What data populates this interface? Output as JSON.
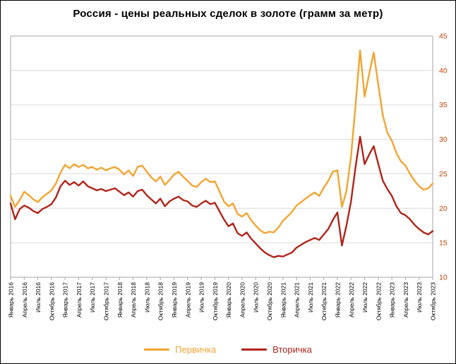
{
  "title": "Россия - цены реальных сделок в золоте (грамм за метр)",
  "chart_data": {
    "type": "line",
    "title": "Россия - цены реальных сделок в золоте (грамм за метр)",
    "xlabel": "",
    "ylabel": "",
    "ylim": [
      10,
      45
    ],
    "y_ticks": [
      10,
      15,
      20,
      25,
      30,
      35,
      40,
      45
    ],
    "y_axis_side": "right",
    "grid": "horizontal",
    "legend_position": "bottom",
    "x_tick_step": 3,
    "x_tick_labels": [
      "Январь 2016",
      "Апрель 2016",
      "Июль 2016",
      "Октябрь 2016",
      "Январь 2017",
      "Апрель 2017",
      "Июль 2017",
      "Октябрь 2017",
      "Январь 2018",
      "Апрель 2018",
      "Июль 2018",
      "Октябрь 2018",
      "Январь 2019",
      "Апрель 2019",
      "Июль 2019",
      "Октябрь 2019",
      "Январь 2020",
      "Апрель 2020",
      "Июль 2020",
      "Октябрь 2020",
      "Январь 2021",
      "Апрель 2021",
      "Июль 2021",
      "Октябрь 2021",
      "Январь 2022",
      "Апрель 2022",
      "Июль 2022",
      "Октябрь 2022",
      "Январь 2023",
      "Апрель 2023",
      "Июль 2023",
      "Октябрь 2023"
    ],
    "x_unit": "month",
    "axis_colors": {
      "y_tick": "#C04000",
      "x_tick": "#000000",
      "grid": "#D9D9D9",
      "frame": "#A6A6A6"
    },
    "series": [
      {
        "name": "Первичка",
        "color": "#F2A432",
        "values": [
          21.8,
          20.2,
          21.2,
          22.4,
          21.9,
          21.3,
          20.9,
          21.6,
          22.1,
          22.6,
          23.6,
          25.2,
          26.3,
          25.8,
          26.4,
          26.0,
          26.3,
          25.8,
          26.0,
          25.6,
          25.9,
          25.5,
          25.8,
          26.0,
          25.6,
          24.9,
          25.5,
          24.7,
          26.0,
          26.2,
          25.3,
          24.5,
          23.9,
          24.6,
          23.4,
          24.1,
          24.9,
          25.3,
          24.6,
          24.0,
          23.3,
          23.1,
          23.8,
          24.3,
          23.8,
          23.9,
          22.5,
          21.0,
          20.3,
          20.7,
          19.2,
          18.8,
          19.3,
          18.3,
          17.5,
          16.8,
          16.4,
          16.6,
          16.5,
          17.2,
          18.2,
          18.8,
          19.5,
          20.4,
          20.9,
          21.4,
          21.9,
          22.3,
          21.8,
          23.0,
          24.0,
          25.3,
          25.5,
          20.2,
          22.5,
          27.5,
          35.0,
          42.9,
          36.2,
          39.5,
          42.6,
          38.0,
          33.5,
          31.0,
          29.8,
          28.0,
          26.8,
          26.2,
          25.0,
          24.0,
          23.2,
          22.7,
          22.9,
          23.6
        ]
      },
      {
        "name": "Вторичка",
        "color": "#B02418",
        "values": [
          20.7,
          18.4,
          19.9,
          20.4,
          20.1,
          19.6,
          19.3,
          19.9,
          20.2,
          20.6,
          21.6,
          23.2,
          24.0,
          23.4,
          23.8,
          23.3,
          23.9,
          23.2,
          22.9,
          22.6,
          22.8,
          22.5,
          22.7,
          22.9,
          22.4,
          21.9,
          22.3,
          21.7,
          22.5,
          22.7,
          21.9,
          21.3,
          20.7,
          21.4,
          20.3,
          21.0,
          21.4,
          21.7,
          21.2,
          21.0,
          20.4,
          20.2,
          20.7,
          21.1,
          20.6,
          20.8,
          19.6,
          18.4,
          17.4,
          17.8,
          16.4,
          16.0,
          16.5,
          15.6,
          14.9,
          14.2,
          13.6,
          13.2,
          12.9,
          13.1,
          13.0,
          13.3,
          13.6,
          14.3,
          14.7,
          15.1,
          15.4,
          15.7,
          15.4,
          16.2,
          17.0,
          18.3,
          19.4,
          14.6,
          17.5,
          21.0,
          26.0,
          30.4,
          26.4,
          27.8,
          29.0,
          26.5,
          24.0,
          22.8,
          21.8,
          20.3,
          19.3,
          19.0,
          18.4,
          17.6,
          17.0,
          16.5,
          16.2,
          16.7
        ]
      }
    ]
  }
}
